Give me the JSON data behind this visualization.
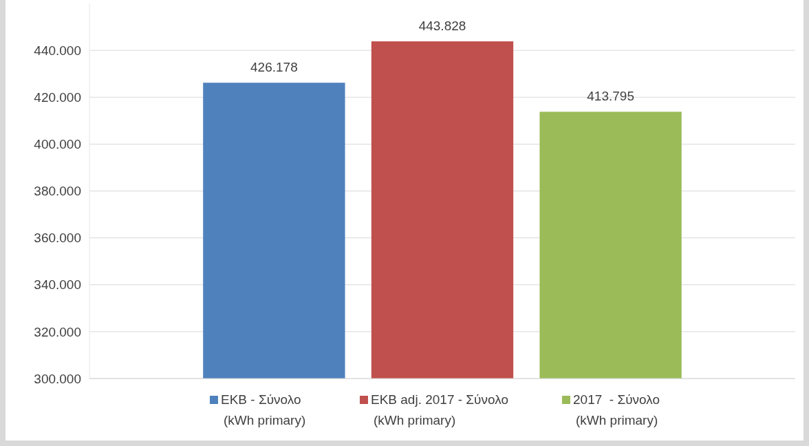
{
  "chart_data": {
    "type": "bar",
    "categories": [
      null
    ],
    "series": [
      {
        "name": "ΕΚΒ - Σύνολο (kWh primary)",
        "color": "#4f81bd",
        "values": [
          426178
        ],
        "value_labels": [
          "426.178"
        ]
      },
      {
        "name": "ΕΚΒ adj. 2017 - Σύνολο (kWh primary)",
        "color": "#c0504d",
        "values": [
          443828
        ],
        "value_labels": [
          "443.828"
        ]
      },
      {
        "name": "2017  - Σύνολο (kWh primary)",
        "color": "#9bbb59",
        "values": [
          413795
        ],
        "value_labels": [
          "413.795"
        ]
      }
    ],
    "ylim": [
      300000,
      460000
    ],
    "yticks": [
      {
        "value": 300000,
        "label": "300.000"
      },
      {
        "value": 320000,
        "label": "320.000"
      },
      {
        "value": 340000,
        "label": "340.000"
      },
      {
        "value": 360000,
        "label": "360.000"
      },
      {
        "value": 380000,
        "label": "380.000"
      },
      {
        "value": 400000,
        "label": "400.000"
      },
      {
        "value": 420000,
        "label": "420.000"
      },
      {
        "value": 440000,
        "label": "440.000"
      }
    ],
    "grid": "y",
    "legend": "bottom"
  }
}
